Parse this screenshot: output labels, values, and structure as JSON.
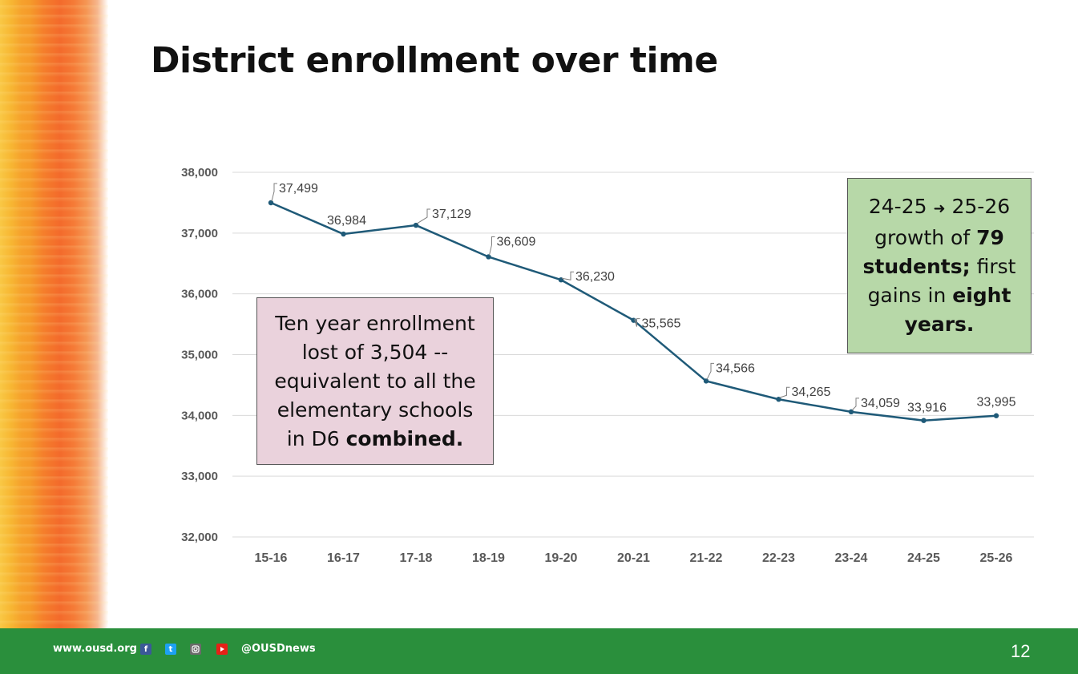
{
  "slide": {
    "title": "District enrollment over time",
    "page_number": "12"
  },
  "notes": {
    "left": {
      "line1": "Ten year enrollment",
      "line2": "lost of 3,504 --",
      "line3": "equivalent to all the",
      "line4": "elementary schools",
      "line5_prefix": "in D6 ",
      "line5_bold": "combined."
    },
    "right": {
      "part1": "24-25 ",
      "arrow": "➜",
      "part2": " 25-26 growth of ",
      "bold1": "79 students;",
      "part3": " first gains in ",
      "bold2": "eight years."
    }
  },
  "footer": {
    "url": "www.ousd.org",
    "handle": "@OUSDnews",
    "icons": [
      "facebook-icon",
      "twitter-icon",
      "instagram-icon",
      "youtube-icon"
    ]
  },
  "colors": {
    "line": "#1f5a78",
    "grid": "#d9d9d9",
    "axis_text": "#595959",
    "label_text": "#404040",
    "footer_bg": "#2a8f3c"
  },
  "chart_data": {
    "type": "line",
    "title": "",
    "xlabel": "",
    "ylabel": "",
    "categories": [
      "15-16",
      "16-17",
      "17-18",
      "18-19",
      "19-20",
      "20-21",
      "21-22",
      "22-23",
      "23-24",
      "24-25",
      "25-26"
    ],
    "values": [
      37499,
      36984,
      37129,
      36609,
      36230,
      35565,
      34566,
      34265,
      34059,
      33916,
      33995
    ],
    "data_labels": [
      "37,499",
      "36,984",
      "37,129",
      "36,609",
      "36,230",
      "35,565",
      "34,566",
      "34,265",
      "34,059",
      "33,916",
      "33,995"
    ],
    "ylim": [
      32000,
      38000
    ],
    "y_ticks": [
      32000,
      33000,
      34000,
      35000,
      36000,
      37000,
      38000
    ],
    "y_tick_labels": [
      "32,000",
      "33,000",
      "34,000",
      "35,000",
      "36,000",
      "37,000",
      "38,000"
    ],
    "grid": true,
    "legend": false
  }
}
